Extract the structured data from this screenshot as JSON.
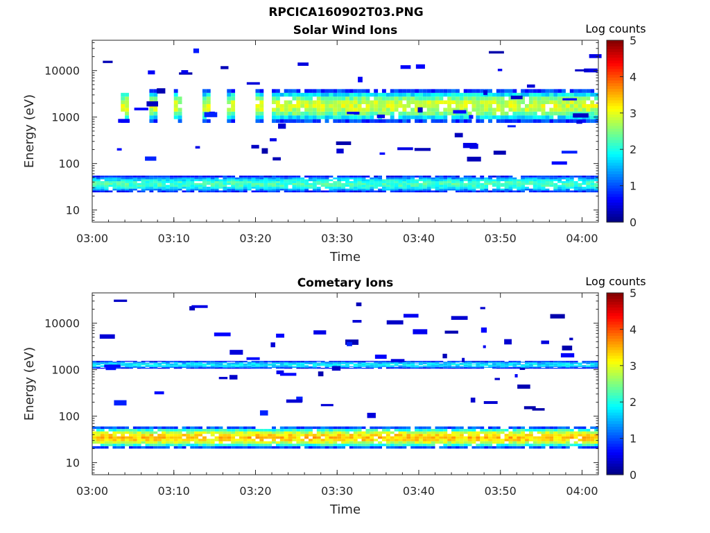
{
  "figure": {
    "title": "RPCICA160902T03.PNG"
  },
  "chart_data": [
    {
      "type": "heatmap",
      "title": "Solar Wind Ions",
      "xlabel": "Time",
      "ylabel": "Energy (eV)",
      "yscale": "log",
      "ylim": [
        5.5,
        45000
      ],
      "xlim": [
        "03:00",
        "04:02"
      ],
      "xticks": [
        "03:00",
        "03:10",
        "03:20",
        "03:30",
        "03:40",
        "03:50",
        "04:00"
      ],
      "yticks": [
        "10",
        "100",
        "1000",
        "10000"
      ],
      "colorbar": {
        "label": "Log counts",
        "range": [
          0,
          5
        ],
        "ticks": [
          "0",
          "1",
          "2",
          "3",
          "4",
          "5"
        ]
      },
      "grid": false,
      "bands": [
        {
          "name": "main",
          "t_start": 3.0,
          "t_end": 62.0,
          "e_low": 750,
          "e_high": 4000,
          "peak_log_counts": 2.5
        },
        {
          "name": "low",
          "t_start": 0.0,
          "t_end": 62.0,
          "e_low": 24,
          "e_high": 55,
          "peak_log_counts": 1.8
        }
      ]
    },
    {
      "type": "heatmap",
      "title": "Cometary Ions",
      "xlabel": "Time",
      "ylabel": "Energy (eV)",
      "yscale": "log",
      "ylim": [
        5.5,
        45000
      ],
      "xlim": [
        "03:00",
        "04:02"
      ],
      "xticks": [
        "03:00",
        "03:10",
        "03:20",
        "03:30",
        "03:40",
        "03:50",
        "04:00"
      ],
      "yticks": [
        "10",
        "100",
        "1000",
        "10000"
      ],
      "colorbar": {
        "label": "Log counts",
        "range": [
          0,
          5
        ],
        "ticks": [
          "0",
          "1",
          "2",
          "3",
          "4",
          "5"
        ]
      },
      "grid": false,
      "bands": [
        {
          "name": "high",
          "t_start": 0.0,
          "t_end": 62.0,
          "e_low": 1050,
          "e_high": 1550,
          "peak_log_counts": 1.4
        },
        {
          "name": "low",
          "t_start": 0.0,
          "t_end": 62.0,
          "e_low": 20,
          "e_high": 60,
          "peak_log_counts": 3.0
        }
      ]
    }
  ]
}
